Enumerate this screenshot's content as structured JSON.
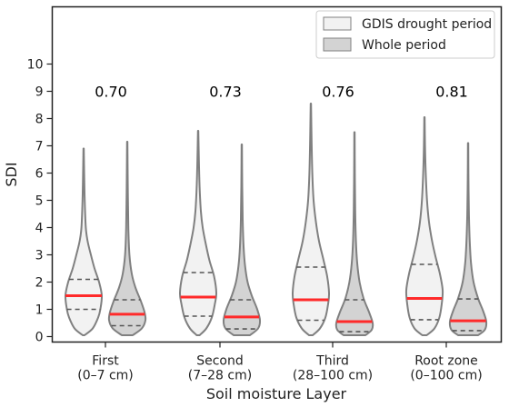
{
  "chart_data": {
    "type": "violin",
    "ylabel": "SDI",
    "xlabel": "Soil moisture Layer",
    "ylim": [
      -0.2,
      12.1
    ],
    "yticks": [
      "0",
      "1",
      "2",
      "3",
      "4",
      "5",
      "6",
      "7",
      "8",
      "9",
      "10"
    ],
    "categories": [
      {
        "line1": "First",
        "line2": "(0–7 cm)"
      },
      {
        "line1": "Second",
        "line2": "(7–28 cm)"
      },
      {
        "line1": "Third",
        "line2": "(28–100 cm)"
      },
      {
        "line1": "Root zone",
        "line2": "(0–100 cm)"
      }
    ],
    "annotations": [
      "0.70",
      "0.73",
      "0.76",
      "0.81"
    ],
    "annotation_y": 9.0,
    "legend": {
      "position": "top-right",
      "entries": [
        {
          "label": "GDIS drought period",
          "color": "#f2f2f2"
        },
        {
          "label": "Whole period",
          "color": "#d3d3d3"
        }
      ]
    },
    "colors": {
      "median_line": "#ff2a2a",
      "outline": "#808080",
      "quartile": "#555555"
    },
    "series": [
      {
        "name": "GDIS drought period",
        "fill": "#f2f2f2",
        "groups": [
          {
            "min": 0.05,
            "max": 6.9,
            "q1": 1.0,
            "median": 1.5,
            "q3": 2.1,
            "profile": [
              [
                0.05,
                0.05
              ],
              [
                0.3,
                0.5
              ],
              [
                0.7,
                0.8
              ],
              [
                1.0,
                0.92
              ],
              [
                1.5,
                1.0
              ],
              [
                2.0,
                0.85
              ],
              [
                2.5,
                0.6
              ],
              [
                3.0,
                0.4
              ],
              [
                3.5,
                0.22
              ],
              [
                4.0,
                0.12
              ],
              [
                5.0,
                0.06
              ],
              [
                6.0,
                0.03
              ],
              [
                6.9,
                0.01
              ]
            ]
          },
          {
            "min": 0.05,
            "max": 7.55,
            "q1": 0.75,
            "median": 1.45,
            "q3": 2.35,
            "profile": [
              [
                0.05,
                0.08
              ],
              [
                0.3,
                0.45
              ],
              [
                0.7,
                0.75
              ],
              [
                1.2,
                0.92
              ],
              [
                1.6,
                1.0
              ],
              [
                2.2,
                0.88
              ],
              [
                2.8,
                0.62
              ],
              [
                3.4,
                0.42
              ],
              [
                4.0,
                0.25
              ],
              [
                4.6,
                0.15
              ],
              [
                5.5,
                0.08
              ],
              [
                6.5,
                0.04
              ],
              [
                7.55,
                0.01
              ]
            ]
          },
          {
            "min": 0.05,
            "max": 8.55,
            "q1": 0.6,
            "median": 1.35,
            "q3": 2.55,
            "profile": [
              [
                0.05,
                0.1
              ],
              [
                0.3,
                0.5
              ],
              [
                0.7,
                0.8
              ],
              [
                1.2,
                0.95
              ],
              [
                1.6,
                1.0
              ],
              [
                2.2,
                0.9
              ],
              [
                2.8,
                0.7
              ],
              [
                3.5,
                0.45
              ],
              [
                4.2,
                0.28
              ],
              [
                5.0,
                0.15
              ],
              [
                6.0,
                0.08
              ],
              [
                7.2,
                0.04
              ],
              [
                8.55,
                0.01
              ]
            ]
          },
          {
            "min": 0.05,
            "max": 8.05,
            "q1": 0.62,
            "median": 1.4,
            "q3": 2.65,
            "profile": [
              [
                0.05,
                0.12
              ],
              [
                0.3,
                0.55
              ],
              [
                0.7,
                0.82
              ],
              [
                1.2,
                0.95
              ],
              [
                1.7,
                1.0
              ],
              [
                2.3,
                0.85
              ],
              [
                2.9,
                0.62
              ],
              [
                3.5,
                0.42
              ],
              [
                4.2,
                0.25
              ],
              [
                5.0,
                0.14
              ],
              [
                6.0,
                0.07
              ],
              [
                7.0,
                0.03
              ],
              [
                8.05,
                0.01
              ]
            ]
          }
        ]
      },
      {
        "name": "Whole period",
        "fill": "#d3d3d3",
        "groups": [
          {
            "min": 0.05,
            "max": 7.15,
            "q1": 0.4,
            "median": 0.82,
            "q3": 1.35,
            "profile": [
              [
                0.05,
                0.3
              ],
              [
                0.3,
                0.8
              ],
              [
                0.6,
                1.0
              ],
              [
                0.9,
                0.95
              ],
              [
                1.3,
                0.75
              ],
              [
                1.8,
                0.45
              ],
              [
                2.3,
                0.25
              ],
              [
                3.0,
                0.12
              ],
              [
                4.0,
                0.06
              ],
              [
                5.5,
                0.03
              ],
              [
                7.15,
                0.01
              ]
            ]
          },
          {
            "min": 0.05,
            "max": 7.05,
            "q1": 0.28,
            "median": 0.72,
            "q3": 1.35,
            "profile": [
              [
                0.05,
                0.45
              ],
              [
                0.3,
                0.9
              ],
              [
                0.6,
                1.0
              ],
              [
                1.0,
                0.85
              ],
              [
                1.5,
                0.55
              ],
              [
                2.0,
                0.32
              ],
              [
                2.6,
                0.18
              ],
              [
                3.3,
                0.1
              ],
              [
                4.3,
                0.05
              ],
              [
                5.5,
                0.025
              ],
              [
                7.05,
                0.01
              ]
            ]
          },
          {
            "min": 0.05,
            "max": 7.5,
            "q1": 0.18,
            "median": 0.55,
            "q3": 1.35,
            "profile": [
              [
                0.05,
                0.6
              ],
              [
                0.25,
                0.95
              ],
              [
                0.5,
                1.0
              ],
              [
                0.9,
                0.8
              ],
              [
                1.4,
                0.5
              ],
              [
                2.0,
                0.28
              ],
              [
                2.7,
                0.15
              ],
              [
                3.5,
                0.08
              ],
              [
                4.6,
                0.04
              ],
              [
                6.0,
                0.02
              ],
              [
                7.5,
                0.01
              ]
            ]
          },
          {
            "min": 0.05,
            "max": 7.1,
            "q1": 0.22,
            "median": 0.58,
            "q3": 1.38,
            "profile": [
              [
                0.05,
                0.55
              ],
              [
                0.25,
                0.92
              ],
              [
                0.55,
                1.0
              ],
              [
                0.95,
                0.82
              ],
              [
                1.4,
                0.55
              ],
              [
                2.0,
                0.3
              ],
              [
                2.7,
                0.16
              ],
              [
                3.5,
                0.09
              ],
              [
                4.5,
                0.045
              ],
              [
                5.8,
                0.02
              ],
              [
                7.1,
                0.01
              ]
            ]
          }
        ]
      }
    ]
  }
}
